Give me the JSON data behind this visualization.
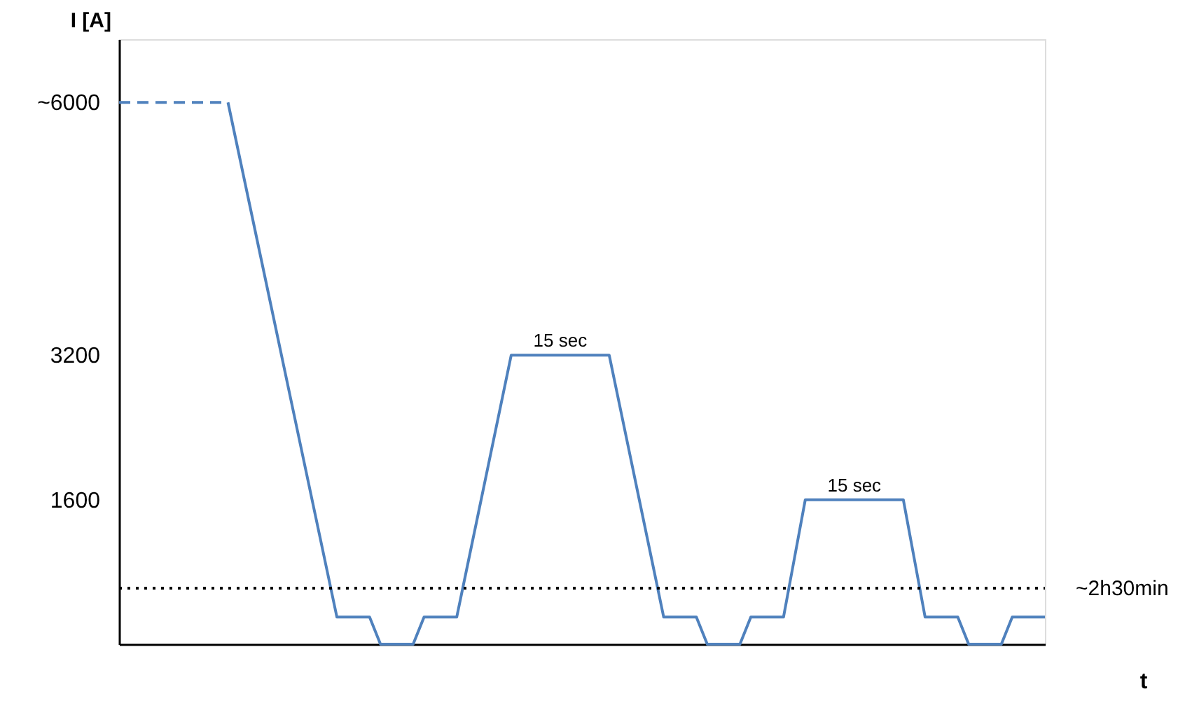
{
  "chart_data": {
    "type": "line",
    "xlabel": "t",
    "ylabel": "I [A]",
    "ylim": [
      0,
      6700
    ],
    "yticks": [
      {
        "value": 6000,
        "label": "~6000"
      },
      3200,
      1600
    ],
    "tick_labels": "y",
    "grid": false,
    "marker": "none",
    "categories": [
      null,
      null,
      null,
      null,
      null,
      null,
      null,
      null,
      null,
      null,
      null,
      null,
      null,
      null,
      null,
      null,
      null,
      null,
      null,
      null,
      null,
      null,
      null,
      null,
      null,
      null,
      null,
      null,
      null,
      null,
      null,
      null,
      null,
      null,
      null,
      null,
      null,
      null,
      null,
      null,
      null,
      null,
      null,
      null,
      null,
      null,
      null,
      null,
      null,
      null,
      null,
      null,
      null,
      null,
      null,
      null,
      null,
      null,
      null,
      null,
      null,
      null,
      null,
      null,
      null,
      null,
      null,
      null,
      null,
      null,
      null,
      null,
      null,
      null,
      null,
      null,
      null,
      null,
      null,
      null,
      null,
      null,
      null,
      null,
      null,
      null
    ],
    "series": [
      {
        "color": "#4f81bd",
        "line_style": "dashed",
        "values": [
          6000,
          6000,
          6000,
          6000,
          6000,
          6000,
          6000,
          6000,
          6000,
          6000,
          6000,
          null,
          null,
          null,
          null,
          null,
          null,
          null,
          null,
          null,
          null,
          null,
          null,
          null,
          null,
          null,
          null,
          null,
          null,
          null,
          null,
          null,
          null,
          null,
          null,
          null,
          null,
          null,
          null,
          null,
          null,
          null,
          null,
          null,
          null,
          null,
          null,
          null,
          null,
          null,
          null,
          null,
          null,
          null,
          null,
          null,
          null,
          null,
          null,
          null,
          null,
          null,
          null,
          null,
          null,
          null,
          null,
          null,
          null,
          null,
          null,
          null,
          null,
          null,
          null,
          null,
          null,
          null,
          null,
          null,
          null,
          null,
          null,
          null,
          null,
          null
        ]
      },
      {
        "color": "#4f81bd",
        "line_style": "solid",
        "values": [
          null,
          null,
          null,
          null,
          null,
          null,
          null,
          null,
          null,
          null,
          6000,
          5430,
          4860,
          4290,
          3720,
          3150,
          2580,
          2010,
          1440,
          870,
          300,
          300,
          300,
          300,
          0,
          0,
          0,
          0,
          300,
          300,
          300,
          300,
          880,
          1460,
          2040,
          2620,
          3200,
          3200,
          3200,
          3200,
          3200,
          3200,
          3200,
          3200,
          3200,
          3200,
          2620,
          2040,
          1460,
          880,
          300,
          300,
          300,
          300,
          0,
          0,
          0,
          0,
          300,
          300,
          300,
          300,
          950,
          1600,
          1600,
          1600,
          1600,
          1600,
          1600,
          1600,
          1600,
          1600,
          1600,
          950,
          300,
          300,
          300,
          300,
          0,
          0,
          0,
          0,
          300,
          300,
          300,
          300
        ]
      },
      {
        "color": "#000000",
        "line_style": "dotted",
        "values": [
          620,
          620,
          620,
          620,
          620,
          620,
          620,
          620,
          620,
          620,
          620,
          620,
          620,
          620,
          620,
          620,
          620,
          620,
          620,
          620,
          620,
          620,
          620,
          620,
          620,
          620,
          620,
          620,
          620,
          620,
          620,
          620,
          620,
          620,
          620,
          620,
          620,
          620,
          620,
          620,
          620,
          620,
          620,
          620,
          620,
          620,
          620,
          620,
          620,
          620,
          620,
          620,
          620,
          620,
          620,
          620,
          620,
          620,
          620,
          620,
          620,
          620,
          620,
          620,
          620,
          620,
          620,
          620,
          620,
          620,
          620,
          620,
          620,
          620,
          620,
          620,
          620,
          620,
          620,
          620,
          620,
          620,
          620,
          620,
          620,
          620
        ]
      }
    ],
    "annotations": [
      {
        "text": "15 sec",
        "y": 3200
      },
      {
        "text": "15 sec",
        "y": 1600
      },
      "~2h30min"
    ]
  }
}
